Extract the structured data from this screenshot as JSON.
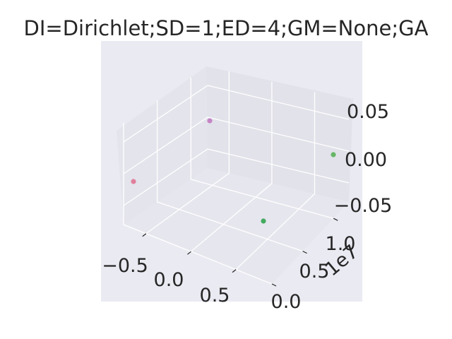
{
  "chart_data": {
    "type": "scatter",
    "projection": "3d",
    "title": "DI=Dirichlet;SD=1;ED=4;GM=None;GA",
    "xlabel": "",
    "ylabel": "",
    "zlabel": "",
    "x_ticks": [
      "−0.5",
      "0.0",
      "0.5"
    ],
    "y_ticks": [
      "0.0",
      "0.5",
      "1.0"
    ],
    "y_offset_text": "1e7",
    "z_ticks": [
      "−0.05",
      "0.00",
      "0.05"
    ],
    "xlim": [
      -0.75,
      0.9
    ],
    "ylim": [
      0.0,
      1.25
    ],
    "zlim": [
      -0.08,
      0.08
    ],
    "grid": true,
    "pane_color": "#eaeaf2",
    "points": [
      {
        "x": -0.75,
        "y": 0.7,
        "z": 0.0,
        "color": "#e07a9a"
      },
      {
        "x": -0.75,
        "y": 1.2,
        "z": 0.0,
        "color": "#c27fc4"
      },
      {
        "x": 0.85,
        "y": 0.15,
        "z": 0.0,
        "color": "#3aa655"
      },
      {
        "x": 0.85,
        "y": 1.2,
        "z": 0.0,
        "color": "#5fb45f"
      }
    ]
  }
}
